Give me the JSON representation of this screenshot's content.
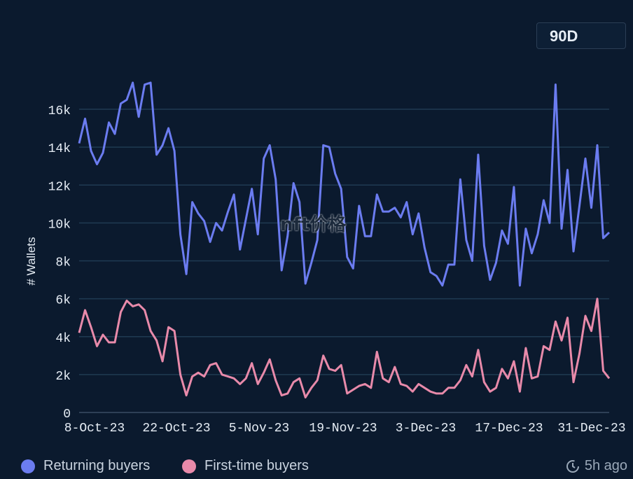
{
  "range_button": "90D",
  "watermark": "nft价格",
  "refresh_text": "5h ago",
  "chart_data": {
    "type": "line",
    "xlabel": "",
    "ylabel": "# Wallets",
    "ylim": [
      0,
      17000
    ],
    "yticks": [
      0,
      2000,
      4000,
      6000,
      8000,
      10000,
      12000,
      14000,
      16000
    ],
    "ytick_labels": [
      "0",
      "2k",
      "4k",
      "6k",
      "8k",
      "10k",
      "12k",
      "14k",
      "16k"
    ],
    "xtick_labels": [
      "8-Oct-23",
      "22-Oct-23",
      "5-Nov-23",
      "19-Nov-23",
      "3-Dec-23",
      "17-Dec-23",
      "31-Dec-23"
    ],
    "grid": true,
    "legend_position": "bottom-left",
    "series": [
      {
        "name": "Returning buyers",
        "color": "#6b7cf0",
        "values": [
          14200,
          15500,
          13800,
          13100,
          13700,
          15300,
          14700,
          16300,
          16500,
          17400,
          15600,
          17300,
          17400,
          13600,
          14100,
          15000,
          13800,
          9400,
          7300,
          11100,
          10500,
          10100,
          9000,
          10000,
          9600,
          10600,
          11500,
          8600,
          10200,
          11800,
          9400,
          13400,
          14100,
          12300,
          7500,
          9300,
          12100,
          11100,
          6800,
          7900,
          9100,
          14100,
          14000,
          12600,
          11800,
          8200,
          7600,
          10900,
          9300,
          9300,
          11500,
          10600,
          10600,
          10800,
          10300,
          11100,
          9400,
          10500,
          8700,
          7400,
          7200,
          6700,
          7800,
          7800,
          12300,
          9100,
          8000,
          13600,
          8800,
          7000,
          7900,
          9600,
          8900,
          11900,
          6700,
          9700,
          8400,
          9400,
          11200,
          10000,
          17300,
          9700,
          12800,
          8500,
          10900,
          13400,
          10800,
          14100,
          9200,
          9500
        ]
      },
      {
        "name": "First-time buyers",
        "color": "#e88aaa",
        "values": [
          4200,
          5400,
          4500,
          3500,
          4100,
          3700,
          3700,
          5300,
          5900,
          5600,
          5700,
          5400,
          4300,
          3800,
          2700,
          4500,
          4300,
          2000,
          900,
          1900,
          2100,
          1900,
          2500,
          2600,
          2000,
          1900,
          1800,
          1500,
          1800,
          2600,
          1500,
          2100,
          2800,
          1700,
          900,
          1000,
          1600,
          1800,
          800,
          1300,
          1700,
          3000,
          2300,
          2200,
          2500,
          1000,
          1200,
          1400,
          1500,
          1300,
          3200,
          1800,
          1600,
          2400,
          1500,
          1400,
          1100,
          1500,
          1300,
          1100,
          1000,
          1000,
          1300,
          1300,
          1700,
          2500,
          1900,
          3300,
          1600,
          1100,
          1300,
          2300,
          1800,
          2700,
          1100,
          3400,
          1800,
          1900,
          3500,
          3300,
          4800,
          3800,
          5000,
          1600,
          3100,
          5100,
          4300,
          6000,
          2200,
          1800
        ]
      }
    ]
  }
}
